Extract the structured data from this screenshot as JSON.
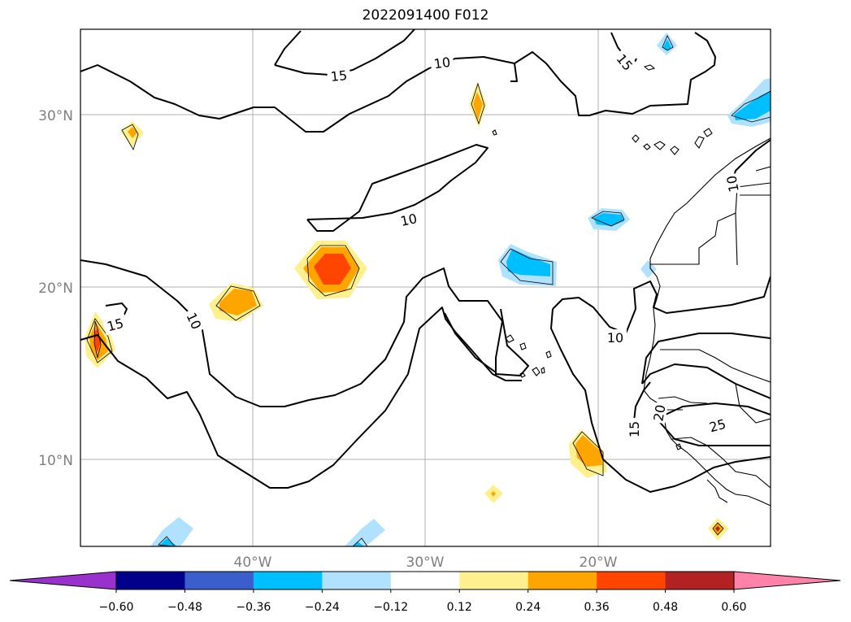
{
  "title": "2022091400 F012",
  "map": {
    "lon_labels": [
      "40°W",
      "30°W",
      "20°W"
    ],
    "lat_labels": [
      "30°N",
      "20°N",
      "10°N"
    ],
    "contour_levels": [
      "10",
      "15",
      "25"
    ],
    "contour_labels": [
      {
        "text": "15"
      },
      {
        "text": "10"
      },
      {
        "text": "15"
      },
      {
        "text": "10"
      },
      {
        "text": "10"
      },
      {
        "text": "15"
      },
      {
        "text": "10"
      },
      {
        "text": "15"
      },
      {
        "text": "20"
      },
      {
        "text": "25"
      },
      {
        "text": "10"
      }
    ]
  },
  "colorbar": {
    "ticks": [
      "−0.60",
      "−0.48",
      "−0.36",
      "−0.24",
      "−0.12",
      "0.12",
      "0.24",
      "0.36",
      "0.48",
      "0.60"
    ],
    "colors": [
      "#9932cc",
      "#00008b",
      "#3a5fcd",
      "#00bfff",
      "#b0e2ff",
      "#ffffff",
      "#fff08f",
      "#ffa500",
      "#ff4500",
      "#b22222",
      "#ff82ab"
    ]
  }
}
